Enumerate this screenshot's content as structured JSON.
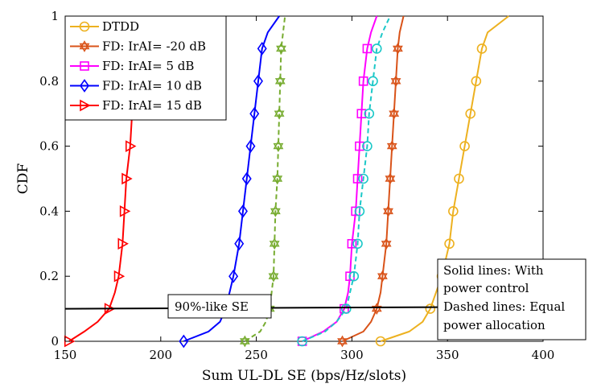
{
  "chart_data": {
    "type": "line",
    "title": "",
    "xlabel": "Sum UL-DL SE (bps/Hz/slots)",
    "ylabel": "CDF",
    "xlim": [
      150,
      400
    ],
    "ylim": [
      0,
      1
    ],
    "xticks": [
      150,
      200,
      250,
      300,
      350,
      400
    ],
    "yticks": [
      0,
      0.2,
      0.4,
      0.6,
      0.8,
      1
    ],
    "xtick_labels": [
      "150",
      "200",
      "250",
      "300",
      "350",
      "400"
    ],
    "ytick_labels": [
      "0",
      "0.2",
      "0.4",
      "0.6",
      "0.8",
      "1"
    ],
    "grid": false,
    "legend_position": "top-left",
    "legend": [
      {
        "label": "DTDD",
        "color": "#EDB120",
        "marker": "circle"
      },
      {
        "label": "FD: IrAI= -20 dB",
        "color": "#D95319",
        "marker": "hexagram"
      },
      {
        "label": "FD: IrAI= 5 dB",
        "color": "#FF00FF",
        "marker": "square"
      },
      {
        "label": "FD: IrAI= 10 dB",
        "color": "#0000FF",
        "marker": "diamond"
      },
      {
        "label": "FD: IrAI= 15 dB",
        "color": "#FF0000",
        "marker": "triangle-right"
      }
    ],
    "series": [
      {
        "color": "#EDB120",
        "dash": "solid",
        "marker": "circle",
        "x": [
          315,
          330,
          337,
          341,
          344,
          347,
          351,
          353,
          356,
          359,
          362,
          365,
          368,
          371,
          382
        ],
        "y": [
          0,
          0.03,
          0.06,
          0.1,
          0.15,
          0.2,
          0.3,
          0.4,
          0.5,
          0.6,
          0.7,
          0.8,
          0.9,
          0.95,
          1
        ]
      },
      {
        "color": "#D95319",
        "dash": "solid",
        "marker": "hexagram",
        "x": [
          295,
          306,
          310,
          313,
          315,
          316,
          318,
          319,
          320,
          321,
          322,
          323,
          324,
          325,
          327
        ],
        "y": [
          0,
          0.03,
          0.06,
          0.1,
          0.15,
          0.2,
          0.3,
          0.4,
          0.5,
          0.6,
          0.7,
          0.8,
          0.9,
          0.95,
          1
        ]
      },
      {
        "color": "#FF00FF",
        "dash": "solid",
        "marker": "square",
        "x": [
          274,
          285,
          292,
          296,
          298,
          299,
          300,
          302,
          303,
          304,
          305,
          306,
          308,
          310,
          313
        ],
        "y": [
          0,
          0.03,
          0.06,
          0.1,
          0.15,
          0.2,
          0.3,
          0.4,
          0.5,
          0.6,
          0.7,
          0.8,
          0.9,
          0.95,
          1
        ]
      },
      {
        "color": "#0000FF",
        "dash": "solid",
        "marker": "diamond",
        "x": [
          212,
          225,
          231,
          234,
          236,
          238,
          241,
          243,
          245,
          247,
          249,
          251,
          253,
          256,
          262
        ],
        "y": [
          0,
          0.03,
          0.06,
          0.1,
          0.15,
          0.2,
          0.3,
          0.4,
          0.5,
          0.6,
          0.7,
          0.8,
          0.9,
          0.95,
          1
        ]
      },
      {
        "color": "#FF0000",
        "dash": "solid",
        "marker": "triangle-right",
        "x": [
          152,
          160,
          167,
          173,
          176,
          178,
          180,
          181,
          182,
          184,
          185,
          187,
          188,
          190,
          192
        ],
        "y": [
          0,
          0.03,
          0.06,
          0.1,
          0.15,
          0.2,
          0.3,
          0.4,
          0.5,
          0.6,
          0.7,
          0.8,
          0.9,
          0.95,
          1
        ]
      },
      {
        "color": "#77AC30",
        "dash": "dashed",
        "marker": "hexagram",
        "x": [
          244,
          252,
          255,
          257,
          258,
          259,
          259.5,
          260,
          261,
          261.5,
          262,
          262.5,
          263,
          264,
          265
        ],
        "y": [
          0,
          0.03,
          0.06,
          0.1,
          0.15,
          0.2,
          0.3,
          0.4,
          0.5,
          0.6,
          0.7,
          0.8,
          0.9,
          0.95,
          1
        ]
      },
      {
        "color": "#1CC8C8",
        "dash": "dashed",
        "marker": "circle",
        "x": [
          274,
          286,
          292,
          297,
          299,
          301,
          303,
          304,
          306,
          308,
          309,
          311,
          313,
          316,
          320
        ],
        "y": [
          0,
          0.03,
          0.06,
          0.1,
          0.15,
          0.2,
          0.3,
          0.4,
          0.5,
          0.6,
          0.7,
          0.8,
          0.9,
          0.95,
          1
        ]
      }
    ],
    "reference_line": {
      "x": [
        150,
        345
      ],
      "y": [
        0.1,
        0.105
      ],
      "color": "#000000"
    },
    "annotations": [
      {
        "text": "90%-like SE",
        "at": {
          "x": 229,
          "y": 0.11
        }
      },
      {
        "lines": [
          "Solid lines: With",
          "power control",
          "Dashed lines: Equal",
          "power allocation"
        ],
        "at": {
          "x": 346,
          "y": 0.25
        }
      }
    ]
  }
}
